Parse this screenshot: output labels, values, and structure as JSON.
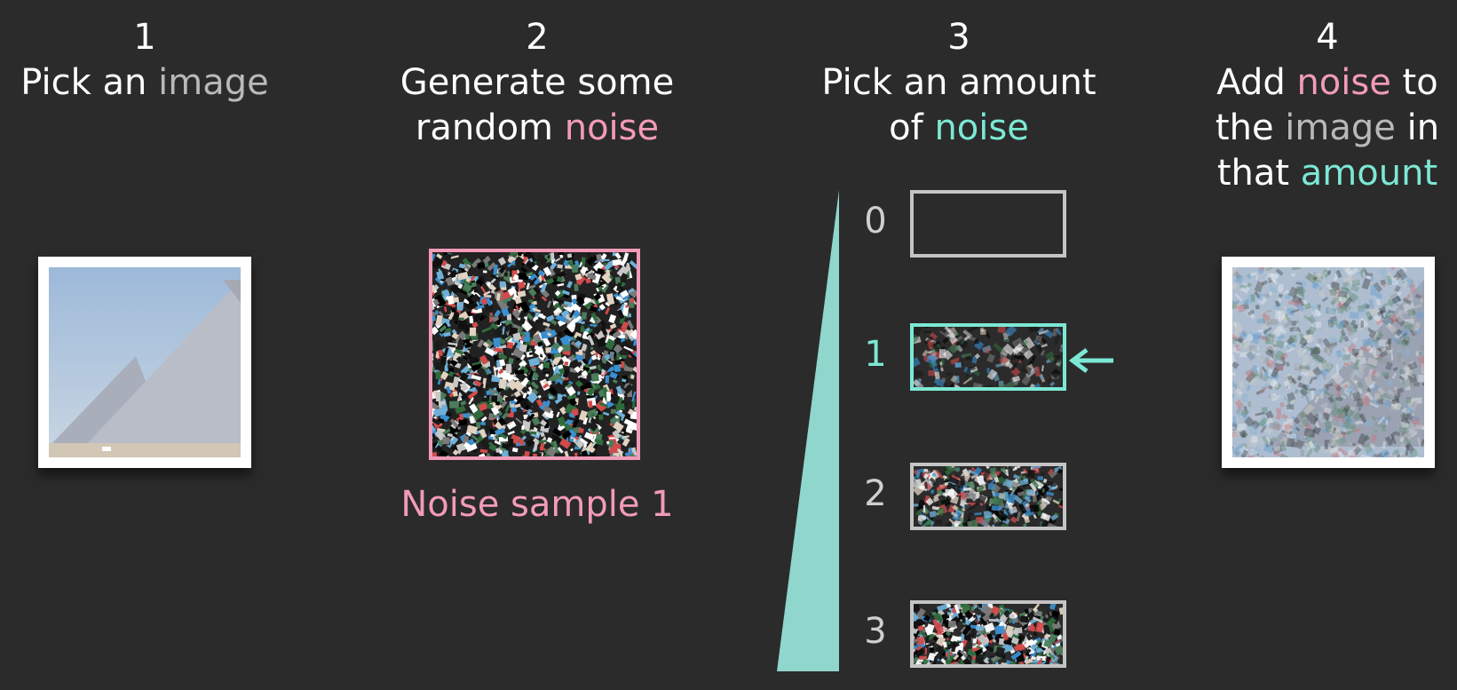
{
  "steps": [
    {
      "number": "1",
      "lines": [
        [
          {
            "t": "Pick an "
          },
          {
            "t": "image",
            "c": "image"
          }
        ]
      ]
    },
    {
      "number": "2",
      "lines": [
        [
          {
            "t": "Generate some"
          }
        ],
        [
          {
            "t": "random "
          },
          {
            "t": "noise",
            "c": "noise"
          }
        ]
      ]
    },
    {
      "number": "3",
      "lines": [
        [
          {
            "t": "Pick an amount"
          }
        ],
        [
          {
            "t": "of "
          },
          {
            "t": "noise",
            "c": "amount"
          }
        ]
      ]
    },
    {
      "number": "4",
      "lines": [
        [
          {
            "t": "Add "
          },
          {
            "t": "noise",
            "c": "noise"
          },
          {
            "t": " to"
          }
        ],
        [
          {
            "t": "the "
          },
          {
            "t": "image",
            "c": "image"
          },
          {
            "t": " in"
          }
        ],
        [
          {
            "t": "that "
          },
          {
            "t": "amount",
            "c": "amount"
          }
        ]
      ]
    }
  ],
  "noise_caption": "Noise sample 1",
  "noise_levels": [
    {
      "label": "0",
      "amount": 0
    },
    {
      "label": "1",
      "amount": 0.35,
      "selected": true
    },
    {
      "label": "2",
      "amount": 0.65
    },
    {
      "label": "3",
      "amount": 0.9
    }
  ],
  "colors": {
    "background": "#2b2b2b",
    "image_word": "#b9b9b9",
    "noise_word": "#f29bb9",
    "amount_word": "#7ce8d4",
    "ramp": "#8fd6cc",
    "box_border": "#c4c4c4"
  },
  "icons": {
    "selected_marker": "arrow-left-icon"
  }
}
